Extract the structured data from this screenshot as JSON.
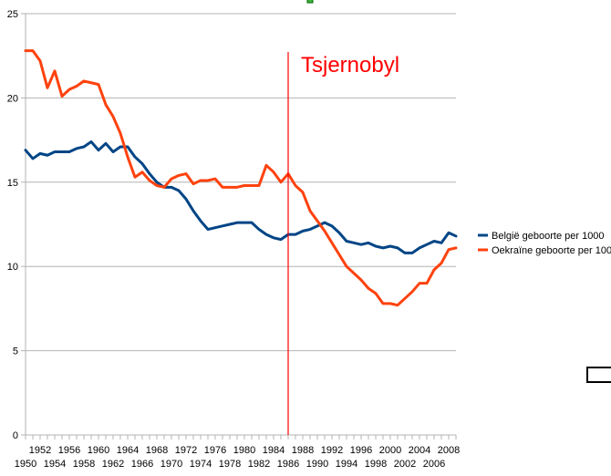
{
  "chart_data": {
    "type": "line",
    "x": [
      1950,
      1951,
      1952,
      1953,
      1954,
      1955,
      1956,
      1957,
      1958,
      1959,
      1960,
      1961,
      1962,
      1963,
      1964,
      1965,
      1966,
      1967,
      1968,
      1969,
      1970,
      1971,
      1972,
      1973,
      1974,
      1975,
      1976,
      1977,
      1978,
      1979,
      1980,
      1981,
      1982,
      1983,
      1984,
      1985,
      1986,
      1987,
      1988,
      1989,
      1990,
      1991,
      1992,
      1993,
      1994,
      1995,
      1996,
      1997,
      1998,
      1999,
      2000,
      2001,
      2002,
      2003,
      2004,
      2005,
      2006,
      2007,
      2008,
      2009
    ],
    "xlim": [
      1950,
      2009
    ],
    "x_tick_labels_upper": [
      "1952",
      "1956",
      "1960",
      "1964",
      "1968",
      "1972",
      "1976",
      "1980",
      "1984",
      "1988",
      "1992",
      "1996",
      "2000",
      "2004",
      "2008"
    ],
    "x_tick_labels_lower": [
      "1950",
      "1954",
      "1958",
      "1962",
      "1966",
      "1970",
      "1974",
      "1978",
      "1982",
      "1986",
      "1990",
      "1994",
      "1998",
      "2002",
      "2006"
    ],
    "ylim": [
      0,
      25
    ],
    "y_ticks": [
      0,
      5,
      10,
      15,
      20,
      25
    ],
    "grid": true,
    "legend_position": "right",
    "series": [
      {
        "name": "België geboorte per 1000",
        "color": "#004586",
        "values": [
          16.9,
          16.4,
          16.7,
          16.6,
          16.8,
          16.8,
          16.8,
          17.0,
          17.1,
          17.4,
          16.9,
          17.3,
          16.8,
          17.1,
          17.1,
          16.5,
          16.1,
          15.5,
          15.0,
          14.7,
          14.7,
          14.5,
          14.0,
          13.3,
          12.7,
          12.2,
          12.3,
          12.4,
          12.5,
          12.6,
          12.6,
          12.6,
          12.2,
          11.9,
          11.7,
          11.6,
          11.9,
          11.9,
          12.1,
          12.2,
          12.4,
          12.6,
          12.4,
          12.0,
          11.5,
          11.4,
          11.3,
          11.4,
          11.2,
          11.1,
          11.2,
          11.1,
          10.8,
          10.8,
          11.1,
          11.3,
          11.5,
          11.4,
          12.0,
          11.8
        ]
      },
      {
        "name": "Oekraïne geboorte per 1000",
        "color": "#ff420e",
        "values": [
          22.8,
          22.8,
          22.2,
          20.6,
          21.6,
          20.1,
          20.5,
          20.7,
          21.0,
          20.9,
          20.8,
          19.6,
          18.9,
          17.9,
          16.5,
          15.3,
          15.6,
          15.1,
          14.8,
          14.7,
          15.2,
          15.4,
          15.5,
          14.9,
          15.1,
          15.1,
          15.2,
          14.7,
          14.7,
          14.7,
          14.8,
          14.8,
          14.8,
          16.0,
          15.6,
          15.0,
          15.5,
          14.8,
          14.4,
          13.3,
          12.7,
          12.1,
          11.4,
          10.7,
          10.0,
          9.6,
          9.2,
          8.7,
          8.4,
          7.8,
          7.8,
          7.7,
          8.1,
          8.5,
          9.0,
          9.0,
          9.8,
          10.2,
          11.0,
          11.1
        ]
      }
    ],
    "annotations": [
      {
        "text": "Tsjernobyl",
        "x": 1986,
        "color": "#ff0000"
      }
    ]
  }
}
